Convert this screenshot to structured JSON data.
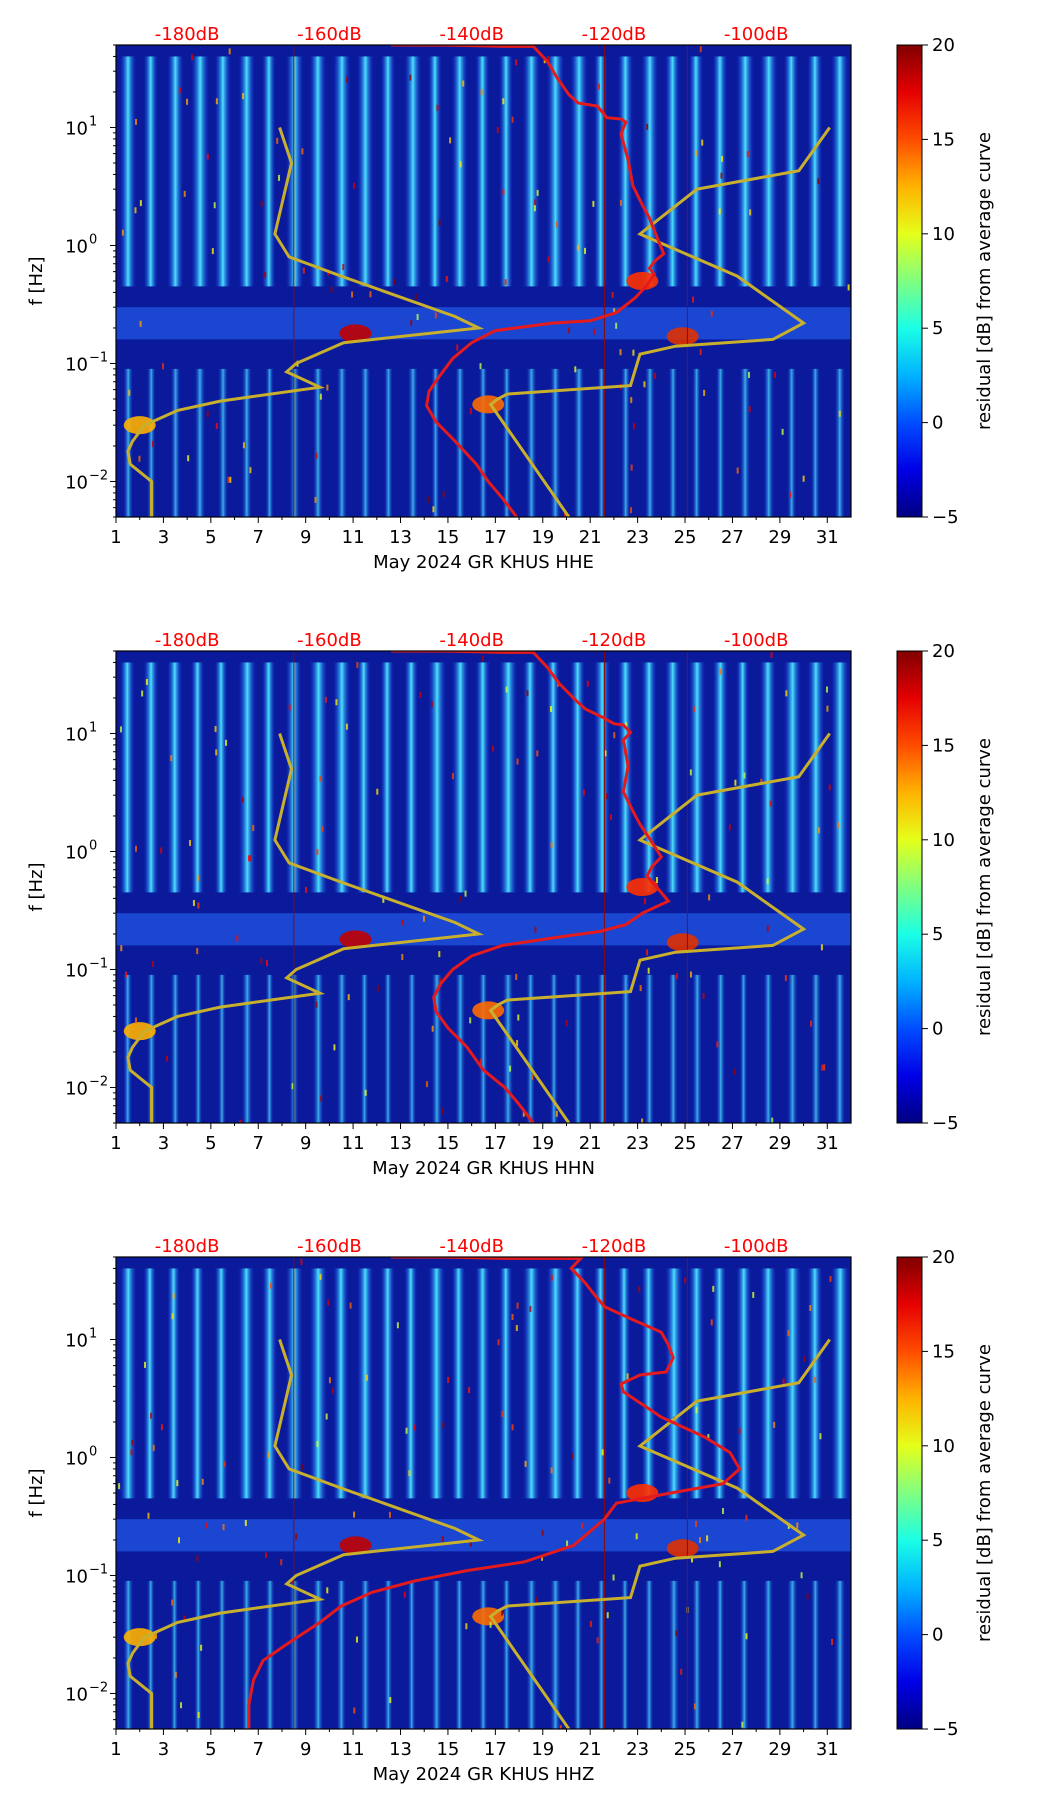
{
  "colors": {
    "top_db_labels": "#ff0000",
    "psd_curve": "#e41a1c",
    "model_curves": "#c8b02d",
    "colormap": "jet"
  },
  "chart_data": [
    {
      "type": "heatmap",
      "channel": "HHE",
      "xlabel": "May 2024 GR KHUS  HHE",
      "ylabel": "f [Hz]",
      "x_ticks": [
        "1",
        "3",
        "5",
        "7",
        "9",
        "11",
        "13",
        "15",
        "17",
        "19",
        "21",
        "23",
        "25",
        "27",
        "29",
        "31"
      ],
      "x_range": [
        1,
        32
      ],
      "y_ticks": [
        {
          "label": "10",
          "exp": "-2",
          "value": 0.01
        },
        {
          "label": "10",
          "exp": "-1",
          "value": 0.1
        },
        {
          "label": "10",
          "exp": "0",
          "value": 1
        },
        {
          "label": "10",
          "exp": "1",
          "value": 10
        }
      ],
      "y_range": [
        0.005,
        50
      ],
      "y_scale": "log",
      "top_db_labels": [
        "-180dB",
        "-160dB",
        "-140dB",
        "-120dB",
        "-100dB"
      ],
      "top_db_positions_day": [
        4,
        10,
        16,
        22,
        28
      ],
      "colorbar": {
        "label": "residual [dB] from average curve",
        "ticks": [
          "−5",
          "0",
          "5",
          "10",
          "15",
          "20"
        ],
        "range": [
          -5,
          20
        ]
      },
      "psd_curve_x_day": [
        12.6,
        15,
        17.4,
        18.6,
        19.2,
        19.6,
        20.1,
        20.5,
        21.3,
        21.7,
        22.3,
        22.5,
        22.3,
        22.6,
        22.8,
        23.2,
        23.5,
        23.8,
        24.1,
        23.7,
        23.5,
        23.7,
        23.4,
        22.9,
        22.1,
        21,
        19.4,
        17,
        16,
        15.2,
        14.6,
        14.2,
        14.1,
        14.5,
        15.3,
        16.2,
        16.7,
        17.3,
        17.9
      ],
      "psd_curve_y_hz": [
        50,
        49.9,
        48.7,
        48.7,
        36.2,
        26.4,
        19,
        16.1,
        15.2,
        12.1,
        11.8,
        11.1,
        8.8,
        5.3,
        3.2,
        2.2,
        1.7,
        1.2,
        0.85,
        0.73,
        0.64,
        0.57,
        0.46,
        0.36,
        0.27,
        0.23,
        0.22,
        0.19,
        0.15,
        0.11,
        0.076,
        0.058,
        0.044,
        0.032,
        0.022,
        0.014,
        0.01,
        0.0072,
        0.005
      ]
    },
    {
      "type": "heatmap",
      "channel": "HHN",
      "xlabel": "May 2024 GR KHUS  HHN",
      "ylabel": "f [Hz]",
      "x_ticks": [
        "1",
        "3",
        "5",
        "7",
        "9",
        "11",
        "13",
        "15",
        "17",
        "19",
        "21",
        "23",
        "25",
        "27",
        "29",
        "31"
      ],
      "x_range": [
        1,
        32
      ],
      "y_ticks": [
        {
          "label": "10",
          "exp": "-2",
          "value": 0.01
        },
        {
          "label": "10",
          "exp": "-1",
          "value": 0.1
        },
        {
          "label": "10",
          "exp": "0",
          "value": 1
        },
        {
          "label": "10",
          "exp": "1",
          "value": 10
        }
      ],
      "y_range": [
        0.005,
        50
      ],
      "y_scale": "log",
      "top_db_labels": [
        "-180dB",
        "-160dB",
        "-140dB",
        "-120dB",
        "-100dB"
      ],
      "top_db_positions_day": [
        4,
        10,
        16,
        22,
        28
      ],
      "colorbar": {
        "label": "residual [dB] from average curve",
        "ticks": [
          "−5",
          "0",
          "5",
          "10",
          "15",
          "20"
        ],
        "range": [
          -5,
          20
        ]
      },
      "psd_curve_x_day": [
        12.6,
        15,
        17.4,
        18.6,
        19.2,
        19.7,
        20.4,
        20.8,
        21.5,
        22,
        22.4,
        22.7,
        22.4,
        22.6,
        22.4,
        22.8,
        23.1,
        23.6,
        24,
        23.6,
        23.4,
        23.8,
        24.3,
        23.2,
        22.5,
        21.4,
        19.8,
        17.3,
        16,
        15.2,
        14.7,
        14.4,
        14.5,
        15,
        15.8,
        16.5,
        17.4,
        18,
        18.6
      ],
      "psd_curve_y_hz": [
        50,
        49.9,
        48.7,
        48.7,
        36.2,
        26.4,
        19,
        16.1,
        13.8,
        12.1,
        11.8,
        10.2,
        8.8,
        5.3,
        3.2,
        2.2,
        1.7,
        1.2,
        0.9,
        0.74,
        0.62,
        0.5,
        0.38,
        0.3,
        0.24,
        0.21,
        0.19,
        0.16,
        0.13,
        0.1,
        0.076,
        0.058,
        0.044,
        0.032,
        0.022,
        0.014,
        0.01,
        0.0072,
        0.005
      ]
    },
    {
      "type": "heatmap",
      "channel": "HHZ",
      "xlabel": "May 2024 GR KHUS  HHZ",
      "ylabel": "f [Hz]",
      "x_ticks": [
        "1",
        "3",
        "5",
        "7",
        "9",
        "11",
        "13",
        "15",
        "17",
        "19",
        "21",
        "23",
        "25",
        "27",
        "29",
        "31"
      ],
      "x_range": [
        1,
        32
      ],
      "y_ticks": [
        {
          "label": "10",
          "exp": "-2",
          "value": 0.01
        },
        {
          "label": "10",
          "exp": "-1",
          "value": 0.1
        },
        {
          "label": "10",
          "exp": "0",
          "value": 1
        },
        {
          "label": "10",
          "exp": "1",
          "value": 10
        }
      ],
      "y_range": [
        0.005,
        50
      ],
      "y_scale": "log",
      "top_db_labels": [
        "-180dB",
        "-160dB",
        "-140dB",
        "-120dB",
        "-100dB"
      ],
      "top_db_positions_day": [
        4,
        10,
        16,
        22,
        28
      ],
      "colorbar": {
        "label": "residual [dB] from average curve",
        "ticks": [
          "−5",
          "0",
          "5",
          "10",
          "15",
          "20"
        ],
        "range": [
          -5,
          20
        ]
      },
      "psd_curve_x_day": [
        12.6,
        15,
        17.4,
        18.6,
        20.6,
        20.2,
        20.8,
        21.1,
        21.6,
        22.7,
        23.4,
        24,
        24.3,
        24.5,
        24.2,
        23.1,
        22.3,
        22.4,
        23.1,
        24,
        25.8,
        26.9,
        27.3,
        26.6,
        24.4,
        22.1,
        21.6,
        20.3,
        18.2,
        15.8,
        13.6,
        11.8,
        10.5,
        9.6,
        8.3,
        7.2,
        6.8,
        6.6,
        6.6
      ],
      "psd_curve_y_hz": [
        50,
        49.9,
        48.7,
        48.7,
        48.7,
        40,
        30,
        25,
        19,
        15,
        13,
        11.5,
        9,
        7,
        5.3,
        5,
        4.2,
        3.6,
        2.9,
        2.2,
        1.5,
        1.1,
        0.8,
        0.6,
        0.5,
        0.41,
        0.3,
        0.18,
        0.13,
        0.11,
        0.09,
        0.072,
        0.055,
        0.04,
        0.027,
        0.019,
        0.013,
        0.008,
        0.005
      ]
    }
  ],
  "model_curve": {
    "low_model_x_day": [
      7.9,
      8.4,
      7.7,
      8.3,
      10.5,
      15.3,
      16.3,
      10.6,
      8.6,
      8.2,
      9.6,
      5.4,
      3.6,
      2.2,
      1.7,
      1.5,
      1.6,
      2.5,
      2.5
    ],
    "low_model_y_hz": [
      10,
      5,
      1.25,
      0.8,
      0.55,
      0.25,
      0.2,
      0.15,
      0.1,
      0.085,
      0.063,
      0.048,
      0.04,
      0.03,
      0.022,
      0.018,
      0.014,
      0.01,
      0.005
    ],
    "high_model_x_day": [
      31.1,
      29.8,
      25.5,
      23.1,
      23.3,
      27.2,
      30,
      28.7,
      24.6,
      23.1,
      22.7,
      17.5,
      17.1,
      16.8,
      20.1
    ],
    "high_model_y_hz": [
      10,
      4.3,
      3,
      1.25,
      1.2,
      0.55,
      0.22,
      0.16,
      0.14,
      0.12,
      0.065,
      0.055,
      0.05,
      0.045,
      0.005
    ]
  }
}
